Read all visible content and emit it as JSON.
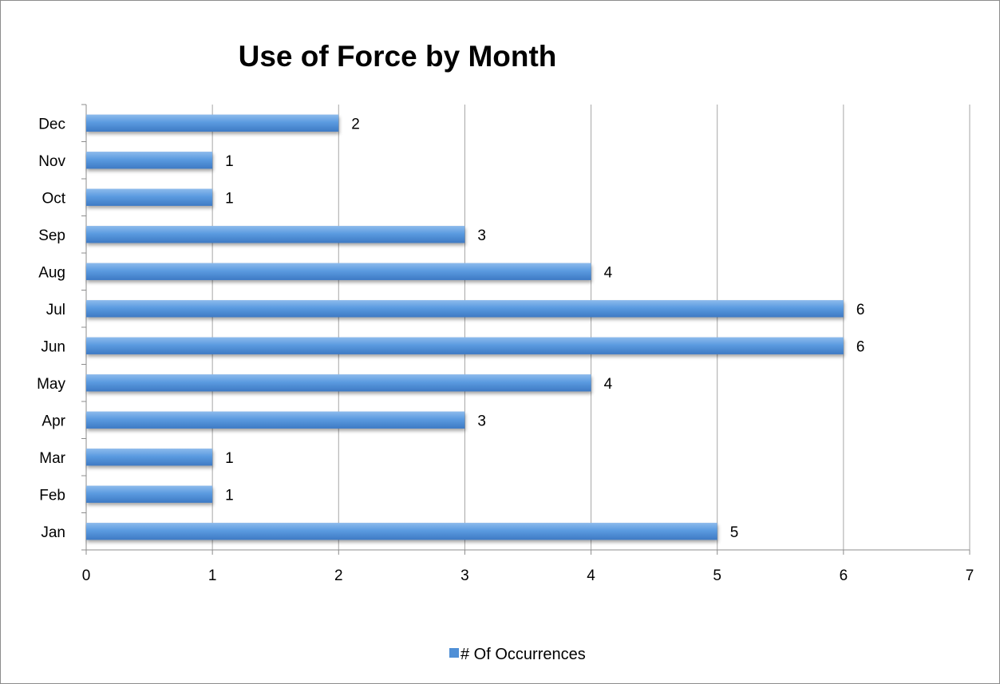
{
  "chart_data": {
    "type": "bar",
    "orientation": "horizontal",
    "title": "Use of Force by Month",
    "categories": [
      "Jan",
      "Feb",
      "Mar",
      "Apr",
      "May",
      "Jun",
      "Jul",
      "Aug",
      "Sep",
      "Oct",
      "Nov",
      "Dec"
    ],
    "series": [
      {
        "name": "# Of Occurrences",
        "values": [
          5,
          1,
          1,
          3,
          4,
          6,
          6,
          4,
          3,
          1,
          1,
          2
        ],
        "color": "#4f8fd6"
      }
    ],
    "xlim": [
      0,
      7
    ],
    "x_ticks": [
      "0",
      "1",
      "2",
      "3",
      "4",
      "5",
      "6",
      "7"
    ],
    "grid": "vertical major gridlines",
    "legend_position": "bottom",
    "data_labels": true
  }
}
